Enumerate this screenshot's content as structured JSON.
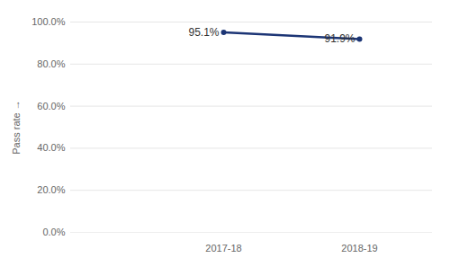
{
  "chart_data": {
    "type": "line",
    "categories": [
      "2017-18",
      "2018-19"
    ],
    "values": [
      95.1,
      91.9
    ],
    "value_labels": [
      "95.1%",
      "91.9%"
    ],
    "y_label": "Pass rate",
    "color": "#1c3575",
    "marker": "circle",
    "ylim": [
      0,
      100
    ],
    "yticks": [
      {
        "value": 0,
        "label": "0.0%"
      },
      {
        "value": 20,
        "label": "20.0%"
      },
      {
        "value": 40,
        "label": "40.0%"
      },
      {
        "value": 60,
        "label": "60.0%"
      },
      {
        "value": 80,
        "label": "80.0%"
      },
      {
        "value": 100,
        "label": "100.0%"
      }
    ],
    "grid": true,
    "data_labels": true
  }
}
